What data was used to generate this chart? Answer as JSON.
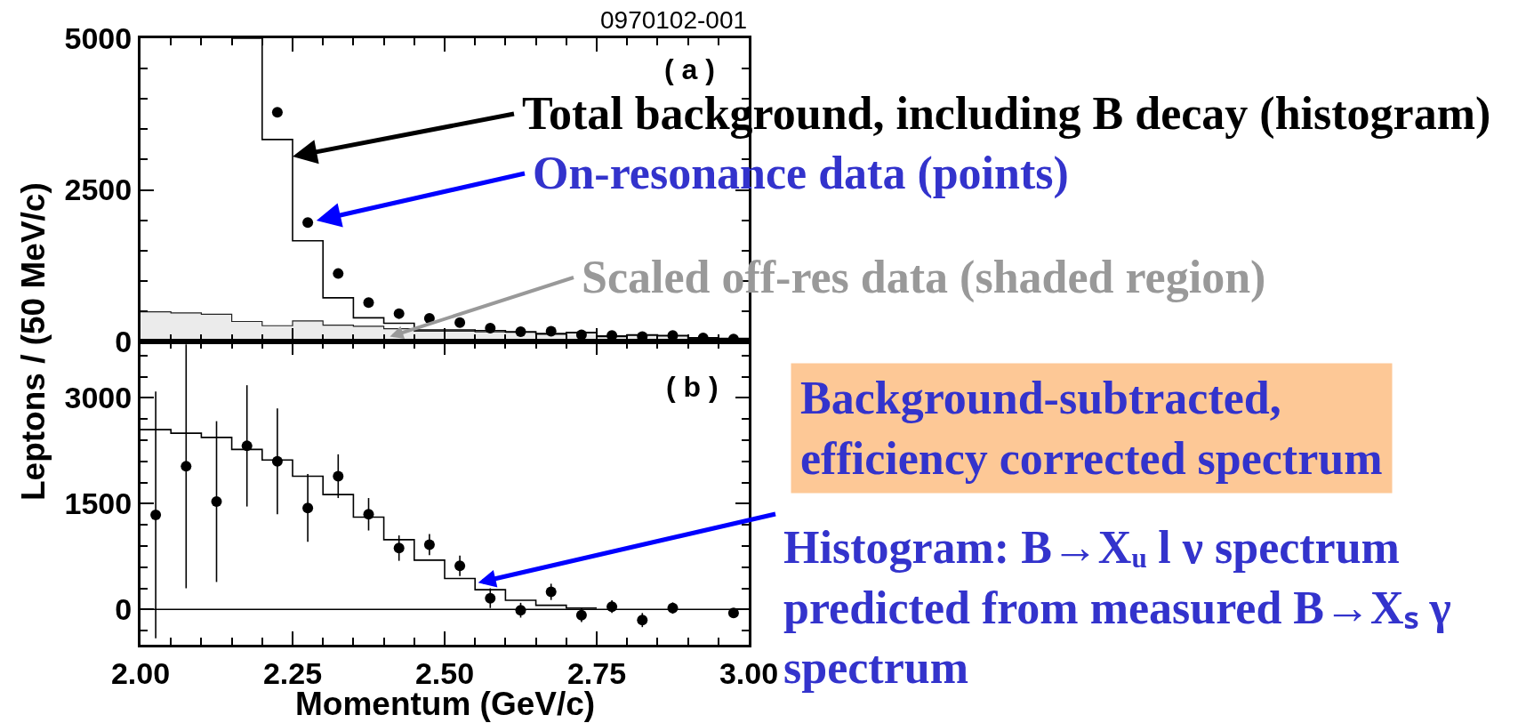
{
  "chart_data": [
    {
      "type": "histogram",
      "annotations": [
        "0970102-001",
        "( a )",
        {
          "text": "Total background, including B decay (histogram)",
          "x": 2.25,
          "y": 3050
        },
        {
          "text": "On-resonance data (points)",
          "x": 2.275,
          "y": 1960
        },
        {
          "text": "Scaled off-res data (shaded region)",
          "x": 2.41,
          "y": 80
        }
      ],
      "series": [
        {
          "type": "area",
          "x": [
            2.0,
            2.05,
            2.05,
            2.1,
            2.1,
            2.15,
            2.15,
            2.2,
            2.2,
            2.25,
            2.25,
            2.3,
            2.3,
            2.35,
            2.35,
            2.4,
            2.4,
            2.45,
            2.45,
            2.5,
            2.5,
            2.55,
            2.55,
            2.6,
            2.6,
            2.65,
            2.65,
            2.7,
            2.7,
            2.75,
            2.75,
            2.8,
            2.8,
            2.85,
            2.85,
            2.9,
            2.9,
            2.95,
            2.95,
            3.0
          ],
          "values": [
            490,
            490,
            470,
            470,
            450,
            450,
            330,
            330,
            260,
            260,
            340,
            340,
            270,
            270,
            250,
            250,
            210,
            210,
            170,
            170,
            170,
            170,
            160,
            160,
            150,
            150,
            120,
            120,
            140,
            140,
            80,
            80,
            100,
            100,
            90,
            90,
            50,
            50,
            40,
            40
          ],
          "color": "#ebebeb"
        },
        {
          "bins": [
            2.15,
            2.2,
            2.25,
            2.3,
            2.35,
            2.4,
            2.45,
            2.5,
            2.55,
            2.6,
            2.65,
            2.7,
            2.75,
            2.8,
            2.85,
            2.9,
            2.95,
            3.0
          ],
          "values": [
            5000,
            3330,
            1660,
            720,
            390,
            300,
            190,
            190,
            180,
            160,
            130,
            150,
            90,
            110,
            100,
            60,
            50
          ],
          "color": "#000000"
        },
        {
          "type": "scatter",
          "marker": "circle",
          "x": [
            2.225,
            2.275,
            2.325,
            2.375,
            2.425,
            2.475,
            2.525,
            2.575,
            2.625,
            2.675,
            2.725,
            2.775,
            2.825,
            2.875,
            2.925,
            2.975
          ],
          "values": [
            3780,
            1960,
            1120,
            640,
            460,
            380,
            310,
            220,
            160,
            170,
            110,
            100,
            80,
            100,
            60,
            40
          ],
          "color": "#000000"
        }
      ],
      "xlim": [
        2,
        3
      ],
      "xticks": [
        2,
        2.25,
        2.5,
        2.75,
        3
      ],
      "ylim": [
        0,
        5000
      ],
      "yticks": [
        0,
        2500,
        5000
      ],
      "tick_labels": "y"
    },
    {
      "type": "histogram",
      "xlabel": "Momentum (GeV/c)",
      "ylabel": "Leptons / (50 MeV/c)",
      "annotations": [
        "( b )",
        {
          "text": "Histogram: B→Xᵤ l ν spectrum\npredicted from measured B→Xₛ γ\nspectrum",
          "x": 2.555,
          "y": 380
        },
        "Background-subtracted,\nefficiency corrected spectrum"
      ],
      "series": [
        {
          "bins": [
            2.0,
            2.05,
            2.1,
            2.15,
            2.2,
            2.25,
            2.3,
            2.35,
            2.4,
            2.45,
            2.5,
            2.55,
            2.6,
            2.65,
            2.7,
            2.75
          ],
          "values": [
            2550,
            2500,
            2440,
            2270,
            2120,
            1890,
            1630,
            1310,
            990,
            700,
            440,
            280,
            130,
            60,
            20
          ],
          "color": "#000000"
        },
        {
          "type": "scatter",
          "marker": "circle",
          "x": [
            2.025,
            2.075,
            2.125,
            2.175,
            2.225,
            2.275,
            2.325,
            2.375,
            2.425,
            2.475,
            2.525,
            2.575,
            2.625,
            2.675,
            2.725,
            2.775,
            2.825,
            2.875,
            2.975
          ],
          "values": [
            1340,
            2030,
            1530,
            2320,
            2100,
            1440,
            1890,
            1350,
            870,
            920,
            620,
            160,
            -10,
            250,
            -80,
            40,
            -150,
            20,
            -50
          ],
          "errors": [
            1750,
            1730,
            1140,
            860,
            750,
            480,
            310,
            230,
            180,
            150,
            145,
            140,
            105,
            115,
            100,
            90,
            100,
            80,
            60
          ],
          "color": "#000000"
        }
      ],
      "ref_lines": [
        {
          "axis": "y",
          "value": 0
        }
      ],
      "xlim": [
        2,
        3
      ],
      "xticks": [
        {
          "value": 2,
          "label": "2.00"
        },
        {
          "value": 2.25,
          "label": "2.25"
        },
        {
          "value": 2.5,
          "label": "2.50"
        },
        {
          "value": 2.75,
          "label": "2.75"
        },
        {
          "value": 3,
          "label": "3.00"
        }
      ],
      "ylim": [
        -500,
        3800
      ],
      "yticks": [
        0,
        1500,
        3000
      ]
    }
  ]
}
